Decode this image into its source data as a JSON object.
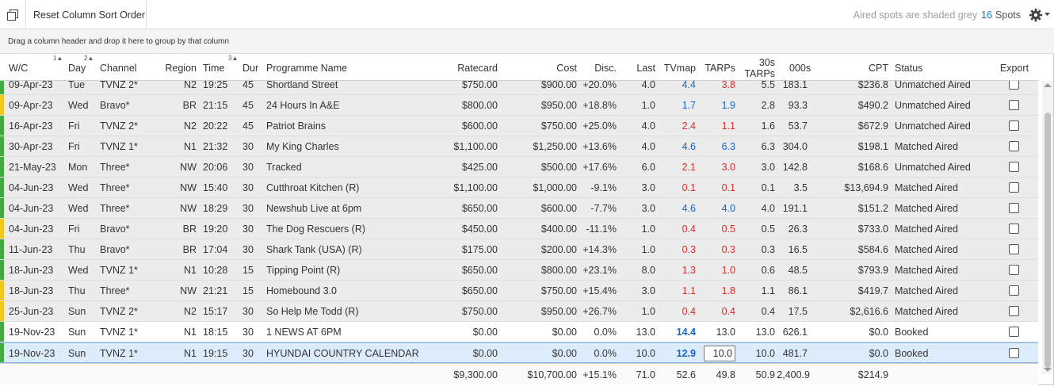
{
  "toolbar": {
    "reset_label": "Reset Column Sort Order",
    "aired_note": "Aired spots are shaded grey",
    "spot_count": "16",
    "spots_label": "Spots"
  },
  "group_hint": "Drag a column header and drop it here to group by that column",
  "columns": {
    "wc": "W/C",
    "day": "Day",
    "channel": "Channel",
    "region": "Region",
    "time": "Time",
    "dur": "Dur",
    "programme": "Programme Name",
    "ratecard": "Ratecard",
    "cost": "Cost",
    "disc": "Disc.",
    "last": "Last",
    "tvmap": "TVmap",
    "tarps": "TARPs",
    "tarps30_line1": "30s",
    "tarps30_line2": "TARPs",
    "k000s": "000s",
    "cpt": "CPT",
    "status": "Status",
    "export": "Export"
  },
  "sort_indicators": {
    "wc": "1▲",
    "day": "2▲",
    "time": "3▲"
  },
  "colors": {
    "stripe_green": "#3fae3f",
    "stripe_yellow": "#f2c81e",
    "aired_bg": "#ececec",
    "blue_value": "#1565c0",
    "red_value": "#d32f2f",
    "accent": "#1f77b4"
  },
  "rows": [
    {
      "wc": "09-Apr-23",
      "day": "Tue",
      "channel": "TVNZ 2*",
      "region": "N2",
      "time": "19:25",
      "dur": "45",
      "programme": "Shortland Street",
      "ratecard": "$750.00",
      "cost": "$900.00",
      "disc": "+20.0%",
      "last": "4.0",
      "tvmap": "4.4",
      "tvmap_color": "blue",
      "tarps": "3.8",
      "tarps_color": "red",
      "tarps30": "5.5",
      "k000s": "183.1",
      "cpt": "$236.8",
      "status": "Unmatched Aired",
      "stripe": "green",
      "state": "aired"
    },
    {
      "wc": "09-Apr-23",
      "day": "Wed",
      "channel": "Bravo*",
      "region": "BR",
      "time": "21:15",
      "dur": "45",
      "programme": "24 Hours In A&E",
      "ratecard": "$800.00",
      "cost": "$950.00",
      "disc": "+18.8%",
      "last": "1.0",
      "tvmap": "1.7",
      "tvmap_color": "blue",
      "tarps": "1.9",
      "tarps_color": "blue",
      "tarps30": "2.8",
      "k000s": "93.3",
      "cpt": "$490.2",
      "status": "Unmatched Aired",
      "stripe": "yellow",
      "state": "aired"
    },
    {
      "wc": "16-Apr-23",
      "day": "Fri",
      "channel": "TVNZ 2*",
      "region": "N2",
      "time": "20:22",
      "dur": "45",
      "programme": "Patriot Brains",
      "ratecard": "$600.00",
      "cost": "$750.00",
      "disc": "+25.0%",
      "last": "4.0",
      "tvmap": "2.4",
      "tvmap_color": "red",
      "tarps": "1.1",
      "tarps_color": "red",
      "tarps30": "1.6",
      "k000s": "53.7",
      "cpt": "$672.9",
      "status": "Unmatched Aired",
      "stripe": "green",
      "state": "aired"
    },
    {
      "wc": "30-Apr-23",
      "day": "Fri",
      "channel": "TVNZ 1*",
      "region": "N1",
      "time": "21:32",
      "dur": "30",
      "programme": "My King Charles",
      "ratecard": "$1,100.00",
      "cost": "$1,250.00",
      "disc": "+13.6%",
      "last": "4.0",
      "tvmap": "4.6",
      "tvmap_color": "blue",
      "tarps": "6.3",
      "tarps_color": "blue",
      "tarps30": "6.3",
      "k000s": "304.0",
      "cpt": "$198.1",
      "status": "Matched Aired",
      "stripe": "green",
      "state": "aired"
    },
    {
      "wc": "21-May-23",
      "day": "Mon",
      "channel": "Three*",
      "region": "NW",
      "time": "20:06",
      "dur": "30",
      "programme": "Tracked",
      "ratecard": "$425.00",
      "cost": "$500.00",
      "disc": "+17.6%",
      "last": "6.0",
      "tvmap": "2.1",
      "tvmap_color": "red",
      "tarps": "3.0",
      "tarps_color": "red",
      "tarps30": "3.0",
      "k000s": "142.8",
      "cpt": "$168.6",
      "status": "Unmatched Aired",
      "stripe": "green",
      "state": "aired"
    },
    {
      "wc": "04-Jun-23",
      "day": "Wed",
      "channel": "Three*",
      "region": "NW",
      "time": "15:40",
      "dur": "30",
      "programme": "Cutthroat Kitchen (R)",
      "ratecard": "$1,100.00",
      "cost": "$1,000.00",
      "disc": "-9.1%",
      "last": "3.0",
      "tvmap": "0.1",
      "tvmap_color": "red",
      "tarps": "0.1",
      "tarps_color": "red",
      "tarps30": "0.1",
      "k000s": "3.5",
      "cpt": "$13,694.9",
      "status": "Matched Aired",
      "stripe": "green",
      "state": "aired"
    },
    {
      "wc": "04-Jun-23",
      "day": "Wed",
      "channel": "Three*",
      "region": "NW",
      "time": "18:29",
      "dur": "30",
      "programme": "Newshub Live at 6pm",
      "ratecard": "$650.00",
      "cost": "$600.00",
      "disc": "-7.7%",
      "last": "3.0",
      "tvmap": "4.6",
      "tvmap_color": "blue",
      "tarps": "4.0",
      "tarps_color": "blue",
      "tarps30": "4.0",
      "k000s": "191.1",
      "cpt": "$151.2",
      "status": "Matched Aired",
      "stripe": "green",
      "state": "aired"
    },
    {
      "wc": "04-Jun-23",
      "day": "Fri",
      "channel": "Bravo*",
      "region": "BR",
      "time": "19:20",
      "dur": "30",
      "programme": "The Dog Rescuers (R)",
      "ratecard": "$450.00",
      "cost": "$400.00",
      "disc": "-11.1%",
      "last": "1.0",
      "tvmap": "0.4",
      "tvmap_color": "red",
      "tarps": "0.5",
      "tarps_color": "red",
      "tarps30": "0.5",
      "k000s": "26.3",
      "cpt": "$733.0",
      "status": "Matched Aired",
      "stripe": "yellow",
      "state": "aired"
    },
    {
      "wc": "11-Jun-23",
      "day": "Thu",
      "channel": "Bravo*",
      "region": "BR",
      "time": "17:04",
      "dur": "30",
      "programme": "Shark Tank (USA) (R)",
      "ratecard": "$175.00",
      "cost": "$200.00",
      "disc": "+14.3%",
      "last": "1.0",
      "tvmap": "0.3",
      "tvmap_color": "red",
      "tarps": "0.3",
      "tarps_color": "red",
      "tarps30": "0.3",
      "k000s": "16.5",
      "cpt": "$584.6",
      "status": "Matched Aired",
      "stripe": "green",
      "state": "aired"
    },
    {
      "wc": "18-Jun-23",
      "day": "Wed",
      "channel": "TVNZ 1*",
      "region": "N1",
      "time": "10:28",
      "dur": "15",
      "programme": "Tipping Point (R)",
      "ratecard": "$650.00",
      "cost": "$800.00",
      "disc": "+23.1%",
      "last": "8.0",
      "tvmap": "1.3",
      "tvmap_color": "red",
      "tarps": "1.0",
      "tarps_color": "red",
      "tarps30": "0.6",
      "k000s": "48.5",
      "cpt": "$793.9",
      "status": "Matched Aired",
      "stripe": "green",
      "state": "aired"
    },
    {
      "wc": "18-Jun-23",
      "day": "Thu",
      "channel": "Three*",
      "region": "NW",
      "time": "21:21",
      "dur": "15",
      "programme": "Homebound 3.0",
      "ratecard": "$650.00",
      "cost": "$750.00",
      "disc": "+15.4%",
      "last": "3.0",
      "tvmap": "1.1",
      "tvmap_color": "red",
      "tarps": "1.8",
      "tarps_color": "red",
      "tarps30": "1.1",
      "k000s": "86.1",
      "cpt": "$419.7",
      "status": "Matched Aired",
      "stripe": "yellow",
      "state": "aired"
    },
    {
      "wc": "25-Jun-23",
      "day": "Sun",
      "channel": "TVNZ 2*",
      "region": "N2",
      "time": "15:17",
      "dur": "30",
      "programme": "So Help Me Todd (R)",
      "ratecard": "$750.00",
      "cost": "$950.00",
      "disc": "+26.7%",
      "last": "1.0",
      "tvmap": "0.4",
      "tvmap_color": "red",
      "tarps": "0.4",
      "tarps_color": "red",
      "tarps30": "0.4",
      "k000s": "17.5",
      "cpt": "$2,616.6",
      "status": "Matched Aired",
      "stripe": "yellow",
      "state": "aired"
    },
    {
      "wc": "19-Nov-23",
      "day": "Sun",
      "channel": "TVNZ 1*",
      "region": "N1",
      "time": "18:15",
      "dur": "30",
      "programme": "1 NEWS AT 6PM",
      "ratecard": "$0.00",
      "cost": "$0.00",
      "disc": "0.0%",
      "last": "13.0",
      "tvmap": "14.4",
      "tvmap_color": "blue-bold",
      "tarps": "13.0",
      "tarps_color": "",
      "tarps30": "13.0",
      "k000s": "626.1",
      "cpt": "$0.0",
      "status": "Booked",
      "stripe": "green",
      "state": "booked"
    },
    {
      "wc": "19-Nov-23",
      "day": "Sun",
      "channel": "TVNZ 1*",
      "region": "N1",
      "time": "19:15",
      "dur": "30",
      "programme": "HYUNDAI COUNTRY CALENDAR",
      "ratecard": "$0.00",
      "cost": "$0.00",
      "disc": "0.0%",
      "last": "10.0",
      "tvmap": "12.9",
      "tvmap_color": "blue-bold",
      "tarps": "10.0",
      "tarps_color": "edit",
      "tarps30": "10.0",
      "k000s": "481.7",
      "cpt": "$0.0",
      "status": "Booked",
      "stripe": "green",
      "state": "selected"
    }
  ],
  "totals": {
    "ratecard": "$9,300.00",
    "cost": "$10,700.00",
    "disc": "+15.1%",
    "last": "71.0",
    "tvmap": "52.6",
    "tarps": "49.8",
    "tarps30": "50.9",
    "k000s": "2,400.9",
    "cpt": "$214.9"
  }
}
